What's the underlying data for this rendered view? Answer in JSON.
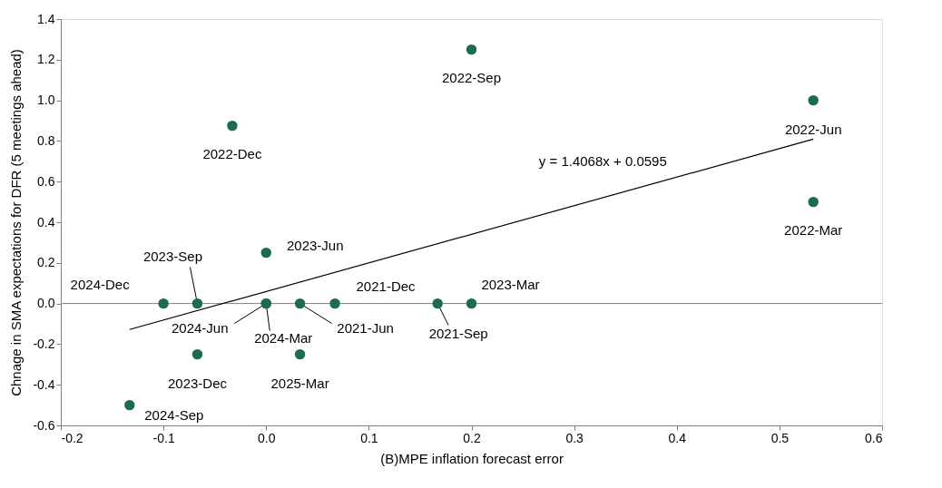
{
  "chart_data": {
    "type": "scatter",
    "xlabel": "(B)MPE inflation forecast error",
    "ylabel": "Chnage in SMA expectations for DFR (5 meetings ahead)",
    "xlim": [
      -0.2,
      0.6
    ],
    "xticks": [
      -0.2,
      -0.1,
      {
        "value": 0,
        "label": "0.0"
      },
      0.1,
      0.2,
      0.3,
      0.4,
      0.5,
      0.6
    ],
    "ylim": [
      -0.6,
      1.4
    ],
    "yticks": [
      -0.6,
      -0.4,
      -0.2,
      {
        "value": 0,
        "label": "0.0"
      },
      0.2,
      0.4,
      0.6,
      0.8,
      {
        "value": 1,
        "label": "1.0"
      },
      1.2,
      1.4
    ],
    "grid": false,
    "ref_lines": [
      {
        "axis": "y",
        "value": 0,
        "color": "#808080"
      }
    ],
    "series": [
      {
        "marker": "circle",
        "color": "#1e6b52",
        "x": [
          0.2,
          0.533,
          0.533,
          -0.033,
          0.0,
          -0.067,
          -0.1,
          0.0,
          0.0,
          0.033,
          0.067,
          0.167,
          0.2,
          -0.067,
          0.033,
          -0.133
        ],
        "values": [
          1.25,
          1.0,
          0.5,
          0.875,
          0.25,
          0.0,
          0.0,
          0.0,
          0.0,
          0.0,
          0.0,
          0.0,
          0.0,
          -0.25,
          -0.25,
          -0.5
        ]
      },
      {
        "type": "line",
        "marker": "none",
        "color": "#000000",
        "x": [
          -0.133,
          0.533
        ],
        "values": [
          -0.128,
          0.809
        ]
      }
    ],
    "annotations": [
      {
        "text": "2022-Sep",
        "x": 0.2,
        "y": 1.25
      },
      {
        "text": "2022-Jun",
        "x": 0.533,
        "y": 1.0
      },
      {
        "text": "2022-Mar",
        "x": 0.533,
        "y": 0.5
      },
      {
        "text": "2022-Dec",
        "x": -0.033,
        "y": 0.875
      },
      {
        "text": "2023-Jun",
        "x": 0.0,
        "y": 0.25
      },
      {
        "text": "2023-Sep",
        "x": -0.067,
        "y": 0.0
      },
      {
        "text": "2024-Dec",
        "x": -0.1,
        "y": 0.0
      },
      {
        "text": "2024-Jun",
        "x": 0.0,
        "y": 0.0
      },
      {
        "text": "2024-Mar",
        "x": 0.0,
        "y": 0.0
      },
      {
        "text": "2021-Jun",
        "x": 0.033,
        "y": 0.0
      },
      {
        "text": "2021-Dec",
        "x": 0.067,
        "y": 0.0
      },
      {
        "text": "2021-Sep",
        "x": 0.167,
        "y": 0.0
      },
      {
        "text": "2023-Mar",
        "x": 0.2,
        "y": 0.0
      },
      {
        "text": "2023-Dec",
        "x": -0.067,
        "y": -0.25
      },
      {
        "text": "2025-Mar",
        "x": 0.033,
        "y": -0.25
      },
      {
        "text": "2024-Sep",
        "x": -0.133,
        "y": -0.5
      },
      "y = 1.4068x + 0.0595"
    ]
  }
}
